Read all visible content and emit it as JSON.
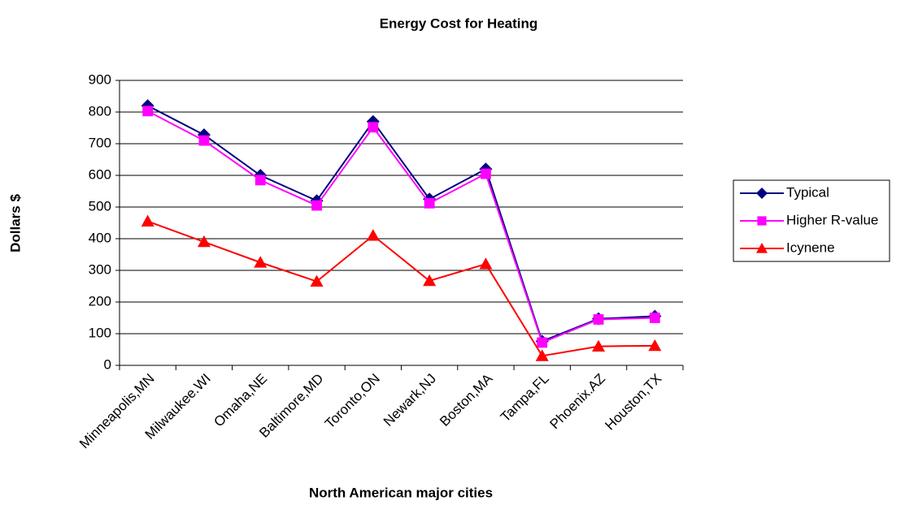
{
  "chart_data": {
    "type": "line",
    "title": "Energy Cost for Heating",
    "x_label": "North American major cities",
    "y_label": "Dollars $",
    "categories": [
      "Minneapolis,MN",
      "Milwaukee.WI",
      "Omaha,NE",
      "Baltimore,MD",
      "Toronto,ON",
      "Newark,NJ",
      "Boston,MA",
      "Tampa,FL",
      "Phoenix.AZ",
      "Houston,TX"
    ],
    "series": [
      {
        "name": "Typical",
        "color": "#000080",
        "marker": "diamond",
        "values": [
          820,
          728,
          600,
          520,
          770,
          525,
          620,
          76,
          147,
          155
        ]
      },
      {
        "name": "Higher R-value",
        "color": "#ff00ff",
        "marker": "square",
        "values": [
          803,
          710,
          585,
          505,
          752,
          512,
          605,
          72,
          145,
          150
        ]
      },
      {
        "name": "Icynene",
        "color": "#ff0000",
        "marker": "triangle",
        "values": [
          455,
          390,
          325,
          265,
          410,
          267,
          320,
          30,
          60,
          62
        ]
      }
    ],
    "ylim": [
      0,
      900
    ],
    "yticks": [
      0,
      100,
      200,
      300,
      400,
      500,
      600,
      700,
      800,
      900
    ],
    "grid": true,
    "legend": "right"
  }
}
